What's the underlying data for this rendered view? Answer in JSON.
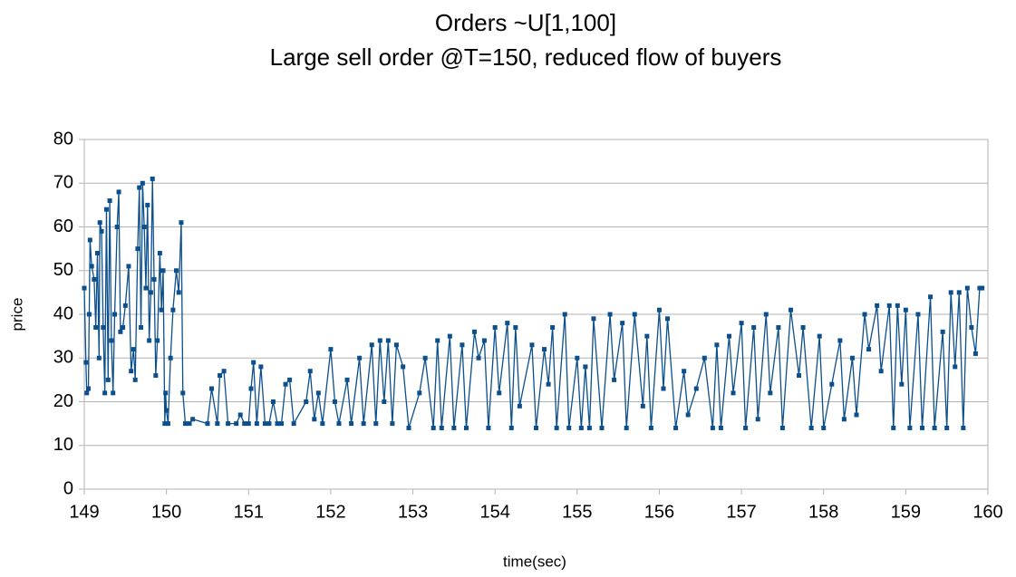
{
  "chart_data": {
    "type": "line",
    "title": "Orders    ~U[1,100]",
    "subtitle": "Large sell order @T=150, reduced flow of buyers",
    "x_label": "time(sec)",
    "y_label": "price",
    "color": "#0b4f8c",
    "grid": true,
    "xlim": [
      149,
      160
    ],
    "xticks": [
      149,
      150,
      151,
      152,
      153,
      154,
      155,
      156,
      157,
      158,
      159,
      160
    ],
    "ylim": [
      0,
      80
    ],
    "yticks": [
      0,
      10,
      20,
      30,
      40,
      50,
      60,
      70,
      80
    ],
    "x": [
      149.0,
      149.02,
      149.03,
      149.05,
      149.06,
      149.07,
      149.09,
      149.12,
      149.14,
      149.16,
      149.18,
      149.19,
      149.21,
      149.23,
      149.25,
      149.27,
      149.29,
      149.31,
      149.33,
      149.35,
      149.37,
      149.4,
      149.42,
      149.44,
      149.47,
      149.5,
      149.54,
      149.57,
      149.6,
      149.62,
      149.65,
      149.67,
      149.69,
      149.71,
      149.73,
      149.75,
      149.77,
      149.79,
      149.81,
      149.83,
      149.85,
      149.87,
      149.89,
      149.92,
      149.94,
      149.96,
      149.98,
      149.99,
      150.0,
      150.02,
      150.05,
      150.08,
      150.12,
      150.15,
      150.18,
      150.2,
      150.23,
      150.28,
      150.32,
      150.5,
      150.55,
      150.62,
      150.65,
      150.7,
      150.75,
      150.85,
      150.9,
      150.95,
      151.0,
      151.03,
      151.06,
      151.1,
      151.15,
      151.2,
      151.25,
      151.3,
      151.35,
      151.4,
      151.45,
      151.5,
      151.55,
      151.7,
      151.75,
      151.8,
      151.85,
      151.9,
      152.0,
      152.05,
      152.1,
      152.2,
      152.25,
      152.35,
      152.4,
      152.5,
      152.55,
      152.6,
      152.65,
      152.7,
      152.75,
      152.8,
      152.88,
      152.95,
      153.08,
      153.15,
      153.25,
      153.3,
      153.35,
      153.45,
      153.5,
      153.6,
      153.65,
      153.75,
      153.8,
      153.87,
      153.92,
      154.0,
      154.05,
      154.15,
      154.2,
      154.25,
      154.3,
      154.45,
      154.5,
      154.6,
      154.65,
      154.7,
      154.75,
      154.85,
      154.9,
      155.0,
      155.05,
      155.1,
      155.15,
      155.2,
      155.3,
      155.4,
      155.45,
      155.55,
      155.6,
      155.7,
      155.8,
      155.85,
      155.9,
      156.0,
      156.05,
      156.1,
      156.2,
      156.3,
      156.35,
      156.45,
      156.55,
      156.65,
      156.7,
      156.75,
      156.85,
      156.9,
      157.0,
      157.05,
      157.15,
      157.2,
      157.3,
      157.35,
      157.45,
      157.5,
      157.6,
      157.7,
      157.75,
      157.85,
      157.95,
      158.0,
      158.1,
      158.2,
      158.25,
      158.35,
      158.4,
      158.5,
      158.55,
      158.65,
      158.7,
      158.8,
      158.85,
      158.9,
      158.95,
      159.0,
      159.05,
      159.15,
      159.2,
      159.3,
      159.35,
      159.45,
      159.5,
      159.55,
      159.6,
      159.65,
      159.7,
      159.75,
      159.8,
      159.85,
      159.9,
      159.93
    ],
    "values": [
      46,
      29,
      22,
      23,
      40,
      57,
      51,
      48,
      37,
      54,
      30,
      61,
      59,
      37,
      22,
      64,
      25,
      66,
      34,
      22,
      40,
      60,
      68,
      36,
      37,
      42,
      51,
      27,
      32,
      25,
      55,
      69,
      37,
      70,
      60,
      46,
      65,
      34,
      45,
      71,
      48,
      26,
      34,
      54,
      41,
      50,
      15,
      22,
      18,
      15,
      30,
      41,
      50,
      45,
      61,
      22,
      15,
      15,
      16,
      15,
      23,
      15,
      26,
      27,
      15,
      15,
      17,
      15,
      15,
      23,
      29,
      15,
      28,
      15,
      15,
      20,
      15,
      15,
      24,
      25,
      15,
      20,
      27,
      16,
      22,
      15,
      32,
      20,
      15,
      25,
      15,
      30,
      15,
      33,
      15,
      34,
      20,
      34,
      15,
      33,
      28,
      14,
      22,
      30,
      14,
      34,
      14,
      35,
      14,
      33,
      14,
      36,
      30,
      34,
      14,
      37,
      22,
      38,
      14,
      37,
      19,
      33,
      14,
      32,
      24,
      37,
      14,
      40,
      14,
      30,
      14,
      28,
      14,
      39,
      14,
      40,
      25,
      38,
      14,
      40,
      19,
      35,
      14,
      41,
      23,
      39,
      14,
      27,
      17,
      23,
      30,
      14,
      33,
      14,
      35,
      22,
      38,
      14,
      37,
      16,
      40,
      22,
      37,
      14,
      41,
      26,
      37,
      14,
      35,
      14,
      24,
      34,
      16,
      30,
      17,
      40,
      32,
      42,
      27,
      42,
      14,
      42,
      24,
      41,
      14,
      40,
      14,
      44,
      14,
      36,
      14,
      45,
      28,
      45,
      14,
      46,
      37,
      31,
      46,
      46
    ]
  }
}
